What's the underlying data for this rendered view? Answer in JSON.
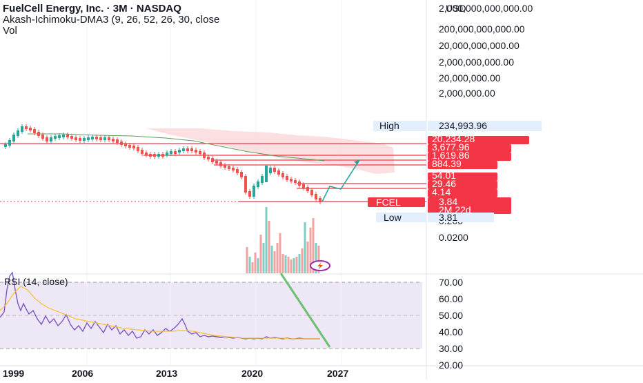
{
  "header": {
    "symbol_line": "FuelCell Energy, Inc. · 3M · NASDAQ",
    "indicator_line": "Akash-Ichimoku-DMA3 (9, 26, 52, 26, 30, close",
    "volume_label": "Vol"
  },
  "price_axis": {
    "currency": "USD",
    "scale": "log",
    "ticks": [
      "2,000,000,000,000.00",
      "200,000,000,000.00",
      "20,000,000,000.00",
      "2,000,000,000.00",
      "20,000,000.00",
      "2,000,000.00",
      "0.200",
      "0.0200"
    ],
    "high_label": "High",
    "high_value": "234,993.96",
    "low_label": "Low",
    "low_value": "3.81",
    "price_labels": [
      "20,234.28",
      "3,677.96",
      "1,619.86",
      "884.39",
      "54.01",
      "29.46",
      "4.14"
    ],
    "ticker": "FCEL",
    "last_price": "3.84",
    "countdown": "2M 22d"
  },
  "time_axis": {
    "ticks": [
      "1999",
      "2006",
      "2013",
      "2020",
      "2027"
    ]
  },
  "rsi": {
    "label": "RSI (14, close)",
    "ticks": [
      "70.00",
      "60.00",
      "50.00",
      "40.00",
      "30.00",
      "20.00"
    ],
    "upper_band": 70,
    "lower_band": 30
  },
  "colors": {
    "up": "#26a69a",
    "down": "#ef5350",
    "level_line": "#f23645",
    "projection": "#26a69a",
    "sma": "#5b9c59",
    "rsi_line": "#7e57c2",
    "rsi_ma": "#fbc02d",
    "rsi_band_fill": "#ede7f6",
    "label_bg": "#e3effd",
    "cloud": "#fbd4d6"
  },
  "chart_data": [
    {
      "type": "line",
      "title": "FuelCell Energy, Inc. · 3M · NASDAQ",
      "scale": "log",
      "x": [
        "1999",
        "2006",
        "2013",
        "2020",
        "2027"
      ],
      "series": [
        {
          "name": "FCEL",
          "values": [
            30000,
            80000,
            20000,
            2500,
            100
          ]
        }
      ],
      "annotations": [
        "High 234,993.96",
        "Low 3.81",
        "FCEL 3.84"
      ]
    },
    {
      "type": "line",
      "title": "RSI (14, close)",
      "x": [
        "1999",
        "2006",
        "2013",
        "2020",
        "2027"
      ],
      "ylim": [
        20,
        75
      ],
      "y_ticks": [
        70,
        60,
        50,
        40,
        30,
        20
      ],
      "series": [
        {
          "name": "RSI",
          "values": [
            48,
            45,
            40,
            36,
            36
          ]
        }
      ]
    }
  ]
}
